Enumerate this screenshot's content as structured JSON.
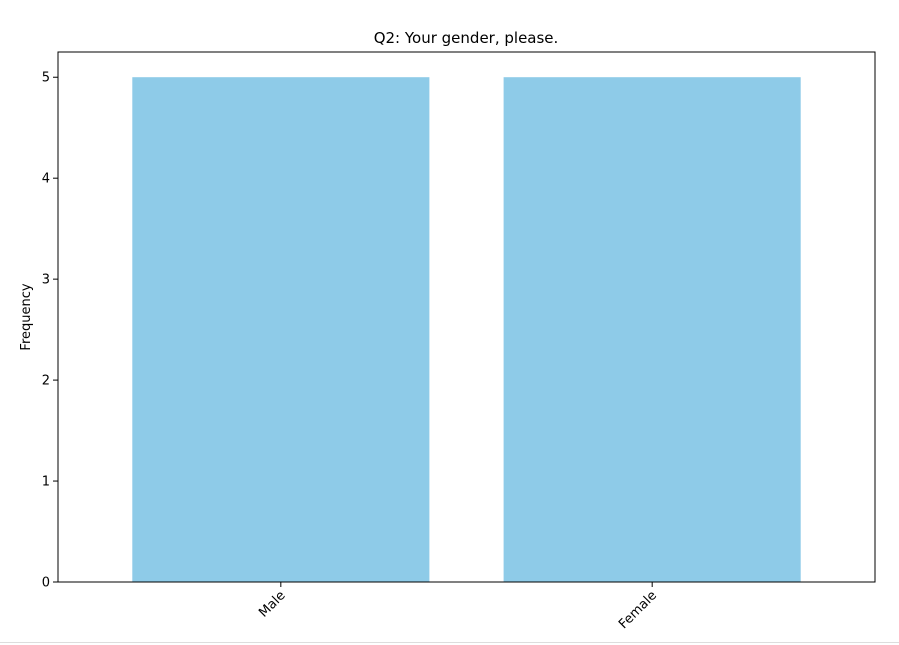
{
  "chart_data": {
    "type": "bar",
    "title": "Q2: Your gender, please.",
    "xlabel": "",
    "ylabel": "Frequency",
    "categories": [
      "Male",
      "Female"
    ],
    "values": [
      5,
      5
    ],
    "ylim": [
      0,
      5.25
    ],
    "yticks": [
      0,
      1,
      2,
      3,
      4,
      5
    ],
    "xtick_rotation_deg": 45,
    "grid": false,
    "legend": "none",
    "bar_color": "#8ecbe8"
  }
}
